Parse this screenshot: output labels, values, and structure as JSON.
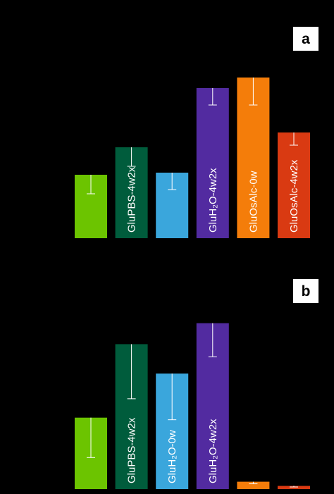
{
  "colors": {
    "background": "#000000",
    "panel_letter_box": "#ffffff"
  },
  "chart_data": [
    {
      "type": "bar",
      "panel_label": "a",
      "ylim": [
        0,
        100
      ],
      "grid": false,
      "series": [
        {
          "values": [
            30,
            43,
            31,
            71,
            76,
            50
          ],
          "errors": [
            9,
            9,
            8,
            8,
            13,
            6
          ],
          "colors": [
            "#6cc400",
            "#005c3c",
            "#3aa6dc",
            "#522ba0",
            "#f47d0a",
            "#d93a12"
          ],
          "bar_labels": [
            "",
            "GluPBS-4w2x",
            "",
            "GluH₂O-4w2x",
            "GluOsAlc-0w",
            "GluOsAlc-4w2x"
          ]
        }
      ]
    },
    {
      "type": "bar",
      "panel_label": "b",
      "ylim": [
        0,
        100
      ],
      "grid": false,
      "series": [
        {
          "values": [
            34,
            69,
            55,
            79,
            3.5,
            1.5
          ],
          "errors": [
            19,
            26,
            22,
            16,
            1,
            0.5
          ],
          "colors": [
            "#6cc400",
            "#005c3c",
            "#3aa6dc",
            "#522ba0",
            "#f47d0a",
            "#d93a12"
          ],
          "bar_labels": [
            "",
            "GluPBS-4w2x",
            "GluH₂O-0w",
            "GluH₂O-4w2x",
            "",
            ""
          ]
        }
      ]
    }
  ]
}
